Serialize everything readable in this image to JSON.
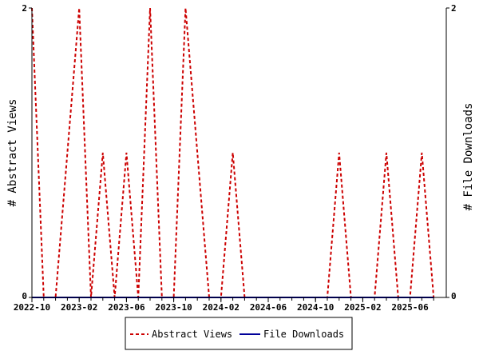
{
  "chart_data": {
    "type": "line",
    "title": "",
    "x_tick_labels": [
      "2022-10",
      "2023-02",
      "2023-06",
      "2023-10",
      "2024-02",
      "2024-06",
      "2024-10",
      "2025-02",
      "2025-06"
    ],
    "x": [
      "2022-10",
      "2022-11",
      "2022-12",
      "2023-01",
      "2023-02",
      "2023-03",
      "2023-04",
      "2023-05",
      "2023-06",
      "2023-07",
      "2023-08",
      "2023-09",
      "2023-10",
      "2023-11",
      "2023-12",
      "2024-01",
      "2024-02",
      "2024-03",
      "2024-04",
      "2024-05",
      "2024-06",
      "2024-07",
      "2024-08",
      "2024-09",
      "2024-10",
      "2024-11",
      "2024-12",
      "2025-01",
      "2025-02",
      "2025-03",
      "2025-04",
      "2025-05",
      "2025-06",
      "2025-07",
      "2025-08"
    ],
    "ylabel_left": "# Abstract Views",
    "ylabel_right": "# File Downloads",
    "ylim": [
      0,
      2
    ],
    "y_tick_labels": [
      "0",
      "2"
    ],
    "grid": false,
    "legend_position": "bottom",
    "series": [
      {
        "name": "Abstract Views",
        "color": "#cc0000",
        "style": "dashed",
        "axis": "left",
        "values": [
          2,
          0,
          0,
          1,
          2,
          0,
          1,
          0,
          1,
          0,
          2,
          0,
          0,
          2,
          1,
          0,
          0,
          1,
          0,
          0,
          0,
          0,
          0,
          0,
          0,
          0,
          1,
          0,
          0,
          0,
          1,
          0,
          0,
          1,
          0
        ]
      },
      {
        "name": "File Downloads",
        "color": "#000099",
        "style": "solid",
        "axis": "right",
        "values": [
          0,
          0,
          0,
          0,
          0,
          0,
          0,
          0,
          0,
          0,
          0,
          0,
          0,
          0,
          0,
          0,
          0,
          0,
          0,
          0,
          0,
          0,
          0,
          0,
          0,
          0,
          0,
          0,
          0,
          0,
          0,
          0,
          0,
          0,
          0
        ]
      }
    ]
  }
}
